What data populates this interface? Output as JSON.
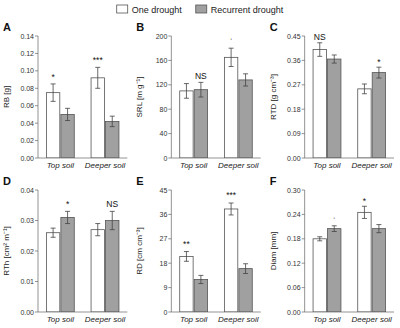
{
  "chart_data": [
    {
      "type": "bar",
      "title": "A",
      "y_label": "RB [g]",
      "legend": "top",
      "grid": false,
      "ylim": [
        0,
        0.14
      ],
      "yticks": [
        {
          "value": 0,
          "label": "0.00"
        },
        0.02,
        0.04,
        0.06,
        0.08,
        {
          "value": 0.1,
          "label": "0.10"
        },
        0.12,
        0.14
      ],
      "categories": [
        "Top soil",
        "Deeper soil"
      ],
      "series": [
        {
          "name": "One drought",
          "color": "#FFFFFF",
          "values": [
            0.075,
            0.092
          ],
          "errors": [
            0.01,
            0.012
          ]
        },
        {
          "name": "Recurrent drought",
          "color": "#A0A0A0",
          "values": [
            0.05,
            0.042
          ],
          "errors": [
            0.007,
            0.006
          ]
        }
      ],
      "annotations": [
        {
          "text": "*",
          "category": "Top soil",
          "series": "One drought",
          "y": 0.088
        },
        {
          "text": "***",
          "category": "Deeper soil",
          "series": "One drought",
          "y": 0.108
        }
      ]
    },
    {
      "type": "bar",
      "title": "B",
      "y_label": "SRL [m g⁻¹]",
      "grid": false,
      "ylim": [
        0,
        200
      ],
      "yticks": [
        0,
        40,
        80,
        120,
        160,
        200
      ],
      "categories": [
        "Top soil",
        "Deeper soil"
      ],
      "series": [
        {
          "name": "One drought",
          "color": "#FFFFFF",
          "values": [
            110,
            165
          ],
          "errors": [
            12,
            15
          ]
        },
        {
          "name": "Recurrent drought",
          "color": "#A0A0A0",
          "values": [
            112,
            128
          ],
          "errors": [
            12,
            10
          ]
        }
      ],
      "annotations": [
        {
          "text": "NS",
          "category": "Top soil",
          "series": "Recurrent drought",
          "y": 128
        },
        {
          "text": "ˈ",
          "category": "Deeper soil",
          "series": "One drought",
          "y": 184
        }
      ]
    },
    {
      "type": "bar",
      "title": "C",
      "y_label": "RTD [g cm⁻³]",
      "grid": false,
      "ylim": [
        0,
        0.45
      ],
      "yticks": [
        {
          "value": 0,
          "label": "0.00"
        },
        0.09,
        0.18,
        0.27,
        0.36,
        0.45
      ],
      "categories": [
        "Top soil",
        "Deeper soil"
      ],
      "series": [
        {
          "name": "One drought",
          "color": "#FFFFFF",
          "values": [
            0.4,
            0.255
          ],
          "errors": [
            0.025,
            0.018
          ]
        },
        {
          "name": "Recurrent drought",
          "color": "#A0A0A0",
          "values": [
            0.365,
            0.315
          ],
          "errors": [
            0.015,
            0.02
          ]
        }
      ],
      "annotations": [
        {
          "text": "NS",
          "category": "Top soil",
          "series": "One drought",
          "y": 0.43
        },
        {
          "text": "*",
          "category": "Deeper soil",
          "series": "Recurrent drought",
          "y": 0.34
        }
      ]
    },
    {
      "type": "bar",
      "title": "D",
      "y_label": "RTh [cm² m⁻¹]",
      "grid": false,
      "ylim": [
        0,
        0.04
      ],
      "yticks": [
        {
          "value": 0,
          "label": "0.00"
        },
        0.01,
        0.02,
        0.03,
        0.04
      ],
      "categories": [
        "Top soil",
        "Deeper soil"
      ],
      "series": [
        {
          "name": "One drought",
          "color": "#FFFFFF",
          "values": [
            0.026,
            0.027
          ],
          "errors": [
            0.0015,
            0.002
          ]
        },
        {
          "name": "Recurrent drought",
          "color": "#A0A0A0",
          "values": [
            0.031,
            0.03
          ],
          "errors": [
            0.002,
            0.003
          ]
        }
      ],
      "annotations": [
        {
          "text": "*",
          "category": "Top soil",
          "series": "Recurrent drought",
          "y": 0.034
        },
        {
          "text": "NS",
          "category": "Deeper soil",
          "series": "Recurrent drought",
          "y": 0.034
        }
      ]
    },
    {
      "type": "bar",
      "title": "E",
      "y_label": "RD [cm cm⁻³]",
      "grid": false,
      "ylim": [
        0,
        45
      ],
      "yticks": [
        0,
        9,
        18,
        27,
        36,
        45
      ],
      "categories": [
        "Top soil",
        "Deeper soil"
      ],
      "series": [
        {
          "name": "One drought",
          "color": "#FFFFFF",
          "values": [
            20.5,
            38.0
          ],
          "errors": [
            1.8,
            2.2
          ]
        },
        {
          "name": "Recurrent drought",
          "color": "#A0A0A0",
          "values": [
            12.0,
            16.0
          ],
          "errors": [
            1.5,
            1.8
          ]
        }
      ],
      "annotations": [
        {
          "text": "**",
          "category": "Top soil",
          "series": "One drought",
          "y": 23.5
        },
        {
          "text": "***",
          "category": "Deeper soil",
          "series": "One drought",
          "y": 41.5
        }
      ]
    },
    {
      "type": "bar",
      "title": "F",
      "y_label": "Diam [mm]",
      "grid": false,
      "ylim": [
        0,
        0.3
      ],
      "yticks": [
        {
          "value": 0,
          "label": "0.00"
        },
        0.06,
        0.12,
        0.18,
        0.24,
        {
          "value": 0.3,
          "label": "0.30"
        }
      ],
      "categories": [
        "Top soil",
        "Deeper soil"
      ],
      "series": [
        {
          "name": "One drought",
          "color": "#FFFFFF",
          "values": [
            0.18,
            0.245
          ],
          "errors": [
            0.005,
            0.015
          ]
        },
        {
          "name": "Recurrent drought",
          "color": "#A0A0A0",
          "values": [
            0.205,
            0.205
          ],
          "errors": [
            0.007,
            0.01
          ]
        }
      ],
      "annotations": [
        {
          "text": "ˈ",
          "category": "Top soil",
          "series": "Recurrent drought",
          "y": 0.215
        },
        {
          "text": "*",
          "category": "Deeper soil",
          "series": "One drought",
          "y": 0.264
        }
      ]
    }
  ]
}
